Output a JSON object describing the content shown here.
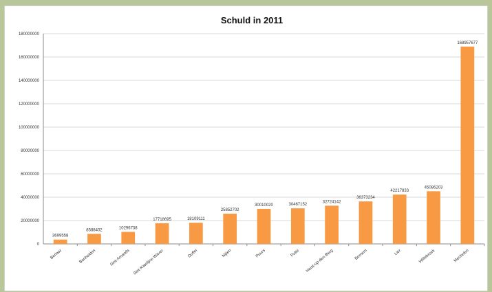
{
  "chart_data": {
    "type": "bar",
    "title": "Schuld in 2011",
    "xlabel": "",
    "ylabel": "",
    "ylim": [
      0,
      180000000
    ],
    "yticks": [
      "0",
      "20000000",
      "40000000",
      "60000000",
      "80000000",
      "100000000",
      "120000000",
      "140000000",
      "160000000",
      "180000000"
    ],
    "grid": true,
    "legend": "none",
    "categories": [
      "Berlaar",
      "Bonheiden",
      "Sint-Amands",
      "Sint-Katelijne-Waver",
      "Duffel",
      "Nijlen",
      "Puurs",
      "Putte",
      "Heist-op-den-Berg",
      "Bornem",
      "Lier",
      "Willebroek",
      "Mechelen"
    ],
    "values": [
      3699558,
      8588402,
      10296738,
      17718695,
      18109111,
      25852702,
      30010020,
      30467152,
      32724142,
      36373234,
      42217833,
      45086203,
      168957677
    ],
    "value_labels": [
      "3699558",
      "8588402",
      "10296738",
      "17718695",
      "18109111",
      "25852702",
      "30010020",
      "30467152",
      "32724142",
      "36373234",
      "42217833",
      "45086203",
      "168957677"
    ],
    "highlight_index": 3,
    "colors": {
      "bar": "#f79a43",
      "highlight_label": "#e87722",
      "label": "#333333"
    }
  }
}
